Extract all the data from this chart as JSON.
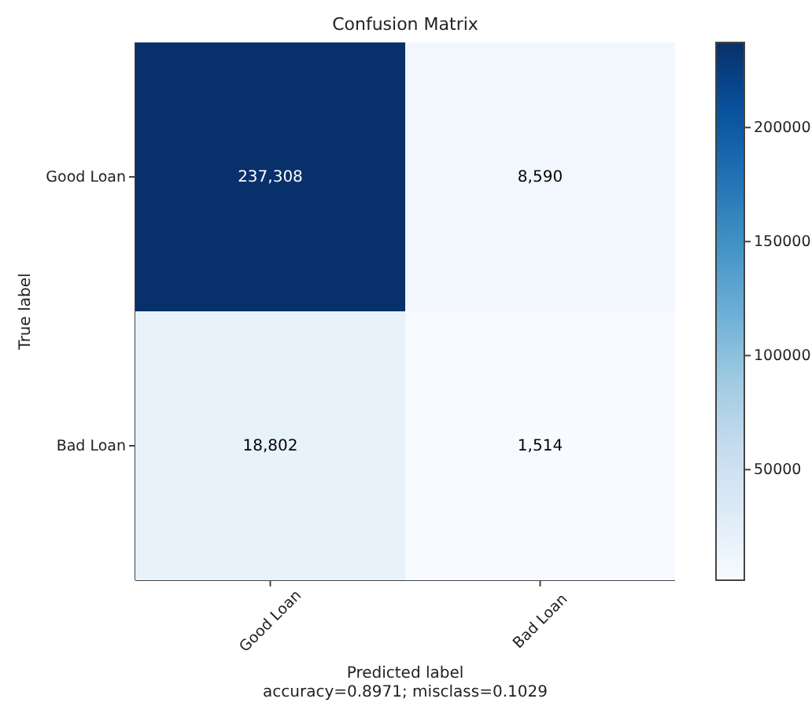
{
  "chart_data": {
    "type": "heatmap",
    "title": "Confusion Matrix",
    "xlabel": "Predicted label",
    "ylabel": "True label",
    "annotations": [
      "accuracy=0.8971; misclass=0.1029"
    ],
    "categories": [
      "Good Loan",
      "Bad Loan"
    ],
    "y_categories": [
      "Good Loan",
      "Bad Loan"
    ],
    "cells": [
      [
        237308,
        8590
      ],
      [
        18802,
        1514
      ]
    ],
    "cell_labels": [
      [
        "237,308",
        "8,590"
      ],
      [
        "18,802",
        "1,514"
      ]
    ],
    "clim": [
      1514,
      237308
    ],
    "cticks": [
      50000,
      100000,
      150000,
      200000
    ]
  }
}
